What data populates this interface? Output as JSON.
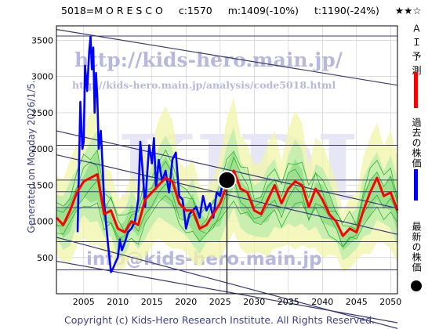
{
  "header": {
    "code_name": "5018=M O R E S C O",
    "current": "c:1570",
    "mid_target": "m:1409(-10%)",
    "target": "t:1190(-24%)",
    "rating": "★★☆"
  },
  "side_label": "Generated on Monday 2026/1/5.",
  "footer": "Copyright (c) Kids-Hero Research Institute. All Rights Reserved.",
  "watermarks": {
    "url1": "http://kids-hero.main.jp/",
    "url2": "http://kids-hero.main.jp/analysis/code5018.html",
    "big": "KIDI",
    "mail": "info@kids-hero.main.jp"
  },
  "legend": [
    {
      "label": "Ａ Ｉ 予 測",
      "color": "#ff0000",
      "mark": "line"
    },
    {
      "label": "過去の株価",
      "color": "#0000ff",
      "mark": "line"
    },
    {
      "label": "最新の株価",
      "color": "#000000",
      "mark": "dot"
    }
  ],
  "chart_data": {
    "type": "line",
    "xlim": [
      2001,
      2051
    ],
    "ylim": [
      0,
      3700
    ],
    "x_ticks": [
      2005,
      2010,
      2015,
      2020,
      2025,
      2030,
      2035,
      2040,
      2045,
      2050
    ],
    "y_ticks": [
      500,
      1000,
      1500,
      2000,
      2500,
      3000,
      3500
    ],
    "grid": true,
    "latest_point": {
      "x": 2026.0,
      "y": 1570
    },
    "horizontal_levels": [
      3560,
      2050,
      1570,
      1409,
      1190,
      720,
      330
    ],
    "trend_lines": [
      {
        "x": [
          2001,
          2051
        ],
        "y": [
          3650,
          2880
        ]
      },
      {
        "x": [
          2001,
          2051
        ],
        "y": [
          2250,
          1180
        ]
      },
      {
        "x": [
          2001,
          2051
        ],
        "y": [
          1920,
          820
        ]
      },
      {
        "x": [
          2001,
          2051
        ],
        "y": [
          780,
          -480
        ]
      },
      {
        "x": [
          2001,
          2051
        ],
        "y": [
          450,
          -400
        ]
      }
    ],
    "series": [
      {
        "name": "過去の株価",
        "x": [
          2004.1,
          2004.5,
          2004.8,
          2005.0,
          2005.2,
          2005.5,
          2005.8,
          2006.0,
          2006.2,
          2006.4,
          2006.6,
          2006.8,
          2007.0,
          2007.2,
          2007.5,
          2007.8,
          2008.0,
          2008.3,
          2008.6,
          2009.0,
          2009.3,
          2009.6,
          2010.0,
          2010.3,
          2010.6,
          2011.0,
          2011.5,
          2012.0,
          2012.5,
          2013.0,
          2013.3,
          2013.6,
          2014.0,
          2014.3,
          2014.6,
          2015.0,
          2015.3,
          2015.6,
          2016.0,
          2016.5,
          2017.0,
          2017.5,
          2018.0,
          2018.5,
          2019.0,
          2019.5,
          2020.0,
          2020.5,
          2021.0,
          2021.5,
          2022.0,
          2022.5,
          2023.0,
          2023.5,
          2024.0,
          2024.5,
          2025.0,
          2025.5,
          2026.0
        ],
        "y": [
          850,
          2650,
          2000,
          2100,
          3150,
          2800,
          3350,
          3550,
          3100,
          3400,
          2500,
          3050,
          2700,
          2000,
          2250,
          1700,
          1250,
          950,
          650,
          300,
          350,
          420,
          500,
          750,
          600,
          700,
          850,
          900,
          1000,
          1300,
          2100,
          1750,
          1200,
          1650,
          2050,
          1800,
          2150,
          1450,
          1850,
          1550,
          1700,
          1400,
          1850,
          1950,
          1350,
          1300,
          900,
          1100,
          1150,
          1200,
          1050,
          1350,
          1150,
          1250,
          1050,
          1400,
          1350,
          1600,
          1570
        ]
      },
      {
        "name": "ＡＩ予測",
        "x": [
          2001,
          2002,
          2003,
          2004,
          2005,
          2006,
          2007,
          2008,
          2009,
          2010,
          2011,
          2012,
          2013,
          2014,
          2015,
          2016,
          2017,
          2018,
          2019,
          2020,
          2021,
          2022,
          2023,
          2024,
          2025,
          2026,
          2027,
          2028,
          2029,
          2030,
          2031,
          2032,
          2033,
          2034,
          2035,
          2036,
          2037,
          2038,
          2039,
          2040,
          2041,
          2042,
          2043,
          2044,
          2045,
          2046,
          2047,
          2048,
          2049,
          2050,
          2051
        ],
        "y": [
          1050,
          950,
          1150,
          1400,
          1550,
          1600,
          1650,
          1100,
          1150,
          900,
          850,
          1000,
          950,
          1300,
          1400,
          1500,
          1600,
          1550,
          1250,
          1150,
          1150,
          900,
          950,
          1100,
          1250,
          1500,
          1700,
          1450,
          1400,
          1150,
          1100,
          1300,
          1500,
          1250,
          1450,
          1550,
          1500,
          1200,
          1450,
          1300,
          1100,
          1000,
          800,
          900,
          850,
          1150,
          1400,
          1600,
          1350,
          1400,
          1150
        ]
      }
    ]
  }
}
